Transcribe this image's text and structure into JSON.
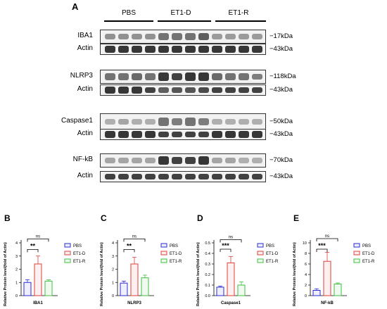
{
  "figure": {
    "panelA": {
      "letter": "A",
      "groups": [
        "PBS",
        "ET1-D",
        "ET1-R"
      ],
      "rows": [
        {
          "label": "IBA1",
          "kda": "−17kDa",
          "intensity": [
            0.45,
            0.45,
            0.45,
            0.45,
            0.6,
            0.6,
            0.6,
            0.7,
            0.4,
            0.4,
            0.4,
            0.4
          ]
        },
        {
          "label": "Actin",
          "kda": "−43kDa",
          "intensity": [
            0.9,
            0.9,
            0.9,
            0.9,
            0.9,
            0.9,
            0.9,
            0.9,
            0.9,
            0.9,
            0.9,
            0.9
          ]
        },
        {
          "label": "NLRP3",
          "kda": "−118kDa",
          "intensity": [
            0.6,
            0.6,
            0.65,
            0.6,
            0.9,
            0.85,
            0.9,
            0.9,
            0.65,
            0.6,
            0.6,
            0.55
          ]
        },
        {
          "label": "Actin",
          "kda": "−43kDa",
          "intensity": [
            0.9,
            0.9,
            0.9,
            0.85,
            0.7,
            0.75,
            0.75,
            0.8,
            0.85,
            0.85,
            0.85,
            0.85
          ]
        },
        {
          "label": "Caspase1",
          "kda": "−50kDa",
          "intensity": [
            0.3,
            0.35,
            0.3,
            0.3,
            0.6,
            0.55,
            0.6,
            0.55,
            0.3,
            0.3,
            0.3,
            0.3
          ]
        },
        {
          "label": "Actin",
          "kda": "−43kDa",
          "intensity": [
            0.9,
            0.9,
            0.9,
            0.9,
            0.85,
            0.85,
            0.85,
            0.85,
            0.9,
            0.9,
            0.9,
            0.9
          ]
        },
        {
          "label": "NF-kB",
          "kda": "−70kDa",
          "intensity": [
            0.35,
            0.35,
            0.35,
            0.35,
            0.9,
            0.85,
            0.85,
            0.9,
            0.35,
            0.35,
            0.3,
            0.3
          ]
        },
        {
          "label": "Actin",
          "kda": "−43kDa",
          "intensity": [
            0.85,
            0.85,
            0.85,
            0.85,
            0.85,
            0.85,
            0.85,
            0.85,
            0.85,
            0.85,
            0.85,
            0.85
          ]
        }
      ]
    },
    "colors": {
      "PBS": "#2b2bd6",
      "ET1-D": "#e0403a",
      "ET1-R": "#3fbf3f"
    },
    "ylabel_text": "Relative Protein level(fold of Actin)"
  },
  "chart_data": [
    {
      "type": "bar",
      "letter": "B",
      "categories": [
        "PBS",
        "ET1-D",
        "ET1-R"
      ],
      "values": [
        1.0,
        2.4,
        1.1
      ],
      "errors": [
        0.2,
        0.6,
        0.1
      ],
      "xlabel": "IBA1",
      "ylabel": "Relative Protein level(fold of Actin)",
      "ylim": [
        0,
        4
      ],
      "yticks": [
        "0",
        "1",
        "2",
        "3",
        "4"
      ],
      "legend": [
        "PBS",
        "ET1-D",
        "ET1-R"
      ],
      "sig": [
        {
          "label": "ns",
          "from": 0,
          "to": 2,
          "level": 4.3
        },
        {
          "label": "**",
          "from": 0,
          "to": 1,
          "level": 3.5
        }
      ]
    },
    {
      "type": "bar",
      "letter": "C",
      "categories": [
        "PBS",
        "ET1-D",
        "ET1-R"
      ],
      "values": [
        0.95,
        2.4,
        1.35
      ],
      "errors": [
        0.15,
        0.5,
        0.2
      ],
      "xlabel": "NLRP3",
      "ylabel": "Relative Protein level(fold of Actin)",
      "ylim": [
        0,
        4
      ],
      "yticks": [
        "0",
        "1",
        "2",
        "3",
        "4"
      ],
      "legend": [
        "PBS",
        "ET1-D",
        "ET1-R"
      ],
      "sig": [
        {
          "label": "ns",
          "from": 0,
          "to": 2,
          "level": 4.3
        },
        {
          "label": "**",
          "from": 0,
          "to": 1,
          "level": 3.5
        }
      ]
    },
    {
      "type": "bar",
      "letter": "D",
      "categories": [
        "PBS",
        "ET1-D",
        "ET1-R"
      ],
      "values": [
        0.08,
        0.31,
        0.1
      ],
      "errors": [
        0.01,
        0.06,
        0.03
      ],
      "xlabel": "Caspase1",
      "ylabel": "Relative Protein level(fold of Actin)",
      "ylim": [
        0,
        0.5
      ],
      "yticks": [
        "0.0",
        "0.1",
        "0.2",
        "0.3",
        "0.4",
        "0.5"
      ],
      "legend": [
        "PBS",
        "ET1-D",
        "ET1-R"
      ],
      "sig": [
        {
          "label": "ns",
          "from": 0,
          "to": 2,
          "level": 0.53
        },
        {
          "label": "***",
          "from": 0,
          "to": 1,
          "level": 0.44
        }
      ]
    },
    {
      "type": "bar",
      "letter": "E",
      "categories": [
        "PBS",
        "ET1-D",
        "ET1-R"
      ],
      "values": [
        1.0,
        6.5,
        2.2
      ],
      "errors": [
        0.3,
        1.7,
        0.2
      ],
      "xlabel": "NF-kB",
      "ylabel": "Relative Protein level(fold of Actin)",
      "ylim": [
        0,
        10
      ],
      "yticks": [
        "0",
        "2",
        "4",
        "6",
        "8",
        "10"
      ],
      "legend": [
        "PBS",
        "ET1-D",
        "ET1-R"
      ],
      "sig": [
        {
          "label": "ns",
          "from": 0,
          "to": 2,
          "level": 10.8
        },
        {
          "label": "***",
          "from": 0,
          "to": 1,
          "level": 8.8
        }
      ]
    }
  ]
}
